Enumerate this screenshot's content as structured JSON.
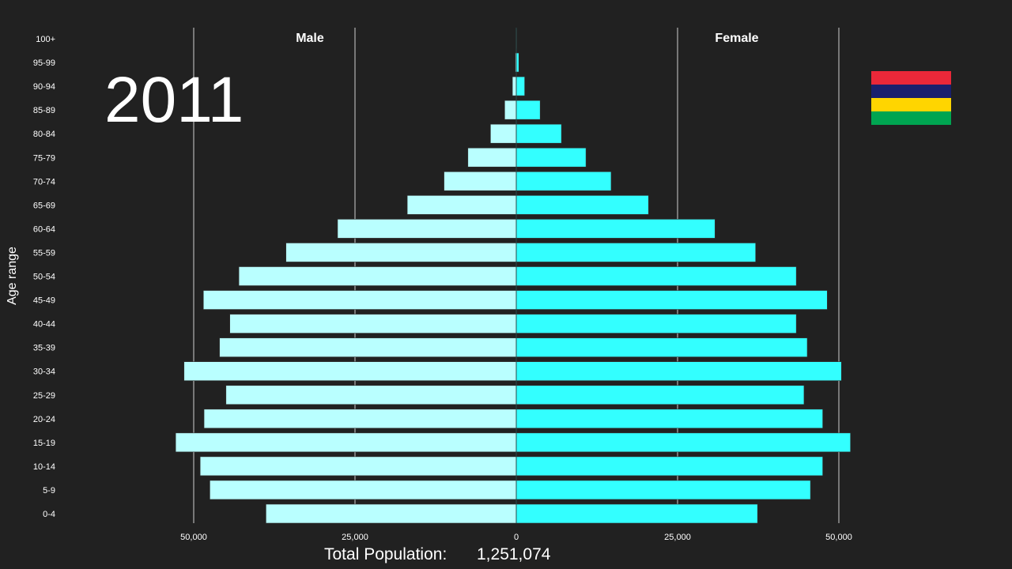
{
  "chart_data": {
    "type": "bar",
    "subtype": "population-pyramid",
    "year_label": "2011",
    "ylabel": "Age range",
    "categories": [
      "0-4",
      "5-9",
      "10-14",
      "15-19",
      "20-24",
      "25-29",
      "30-34",
      "35-39",
      "40-44",
      "45-49",
      "50-54",
      "55-59",
      "60-64",
      "65-69",
      "70-74",
      "75-79",
      "80-84",
      "85-89",
      "90-94",
      "95-99",
      "100+"
    ],
    "series": [
      {
        "name": "Male",
        "color": "#b9ffff",
        "values": [
          38800,
          47500,
          49000,
          52800,
          48400,
          45000,
          51500,
          46000,
          44400,
          48500,
          43000,
          35700,
          27700,
          16900,
          11200,
          7500,
          4000,
          1800,
          600,
          150,
          20
        ]
      },
      {
        "name": "Female",
        "color": "#33ffff",
        "values": [
          37400,
          45600,
          47500,
          51800,
          47500,
          44600,
          50400,
          45100,
          43400,
          48200,
          43400,
          37100,
          30800,
          20500,
          14700,
          10800,
          7000,
          3700,
          1300,
          400,
          50
        ]
      }
    ],
    "xlim": [
      -65000,
      65000
    ],
    "x_ticks": [
      {
        "value": -50000,
        "label": "50,000"
      },
      {
        "value": -25000,
        "label": "25,000"
      },
      {
        "value": 0,
        "label": "0"
      },
      {
        "value": 25000,
        "label": "25,000"
      },
      {
        "value": 50000,
        "label": "50,000"
      }
    ],
    "grid": true,
    "total_label": "Total Population:",
    "total_value": "1,251,074",
    "flag_colors": [
      "#ea2839",
      "#1a206d",
      "#ffd500",
      "#00a551"
    ]
  }
}
